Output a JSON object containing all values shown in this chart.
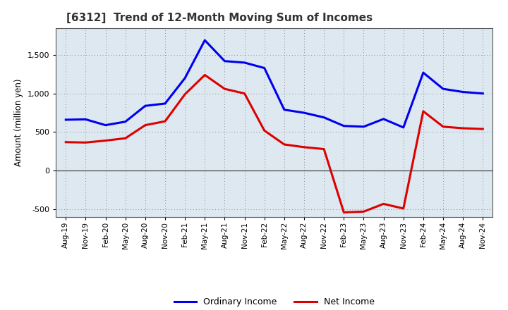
{
  "title": "[6312]  Trend of 12-Month Moving Sum of Incomes",
  "ylabel": "Amount (million yen)",
  "background_color": "#ffffff",
  "plot_bg_color": "#dde8f0",
  "grid_color": "#888888",
  "x_labels": [
    "Aug-19",
    "Nov-19",
    "Feb-20",
    "May-20",
    "Aug-20",
    "Nov-20",
    "Feb-21",
    "May-21",
    "Aug-21",
    "Nov-21",
    "Feb-22",
    "May-22",
    "Aug-22",
    "Nov-22",
    "Feb-23",
    "May-23",
    "Aug-23",
    "Nov-23",
    "Feb-24",
    "May-24",
    "Aug-24",
    "Nov-24"
  ],
  "ordinary_income": [
    660,
    665,
    590,
    635,
    840,
    870,
    1200,
    1690,
    1420,
    1400,
    1330,
    790,
    750,
    690,
    580,
    570,
    670,
    560,
    1270,
    1060,
    1020,
    1000
  ],
  "net_income": [
    370,
    365,
    390,
    420,
    590,
    640,
    990,
    1240,
    1060,
    1000,
    520,
    340,
    305,
    280,
    -540,
    -530,
    -430,
    -490,
    770,
    570,
    550,
    540
  ],
  "ordinary_color": "#0000ee",
  "net_color": "#dd0000",
  "ylim": [
    -600,
    1850
  ],
  "yticks": [
    -500,
    0,
    500,
    1000,
    1500
  ],
  "line_width": 2.2,
  "legend_ordinary": "Ordinary Income",
  "legend_net": "Net Income"
}
